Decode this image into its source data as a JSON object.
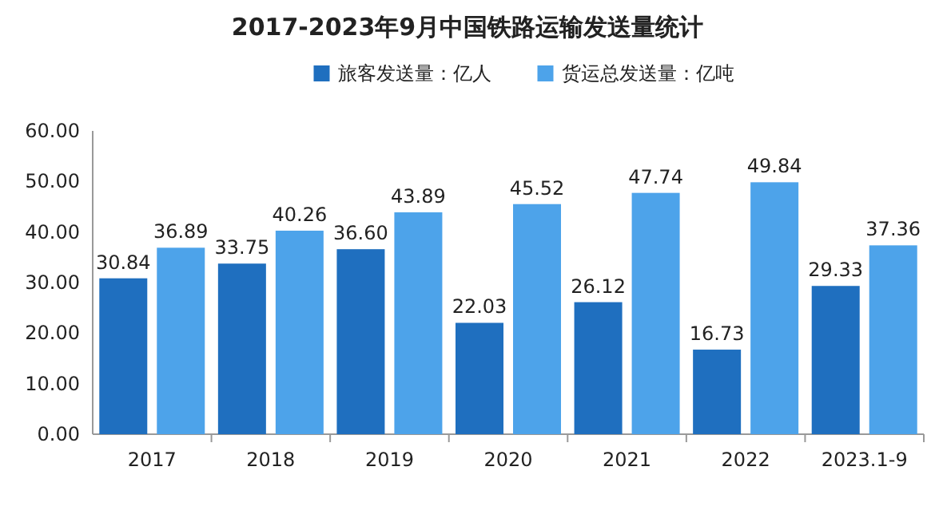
{
  "chart_data": {
    "type": "bar",
    "title": "2017-2023年9月中国铁路运输发送量统计",
    "categories": [
      "2017",
      "2018",
      "2019",
      "2020",
      "2021",
      "2022",
      "2023.1-9"
    ],
    "series": [
      {
        "name": "旅客发送量：亿人",
        "color": "#1f6fbf",
        "values": [
          30.84,
          33.75,
          36.6,
          22.03,
          26.12,
          16.73,
          29.33
        ],
        "value_labels": [
          "30.84",
          "33.75",
          "36.60",
          "22.03",
          "26.12",
          "16.73",
          "29.33"
        ]
      },
      {
        "name": "货运总发送量：亿吨",
        "color": "#4da3ea",
        "values": [
          36.89,
          40.26,
          43.89,
          45.52,
          47.74,
          49.84,
          37.36
        ],
        "value_labels": [
          "36.89",
          "40.26",
          "43.89",
          "45.52",
          "47.74",
          "49.84",
          "37.36"
        ]
      }
    ],
    "ylim": [
      0,
      60
    ],
    "yticks": [
      {
        "value": 0,
        "label": "0.00"
      },
      {
        "value": 10,
        "label": "10.00"
      },
      {
        "value": 20,
        "label": "20.00"
      },
      {
        "value": 30,
        "label": "30.00"
      },
      {
        "value": 40,
        "label": "40.00"
      },
      {
        "value": 50,
        "label": "50.00"
      },
      {
        "value": 60,
        "label": "60.00"
      }
    ],
    "legend": "top"
  }
}
